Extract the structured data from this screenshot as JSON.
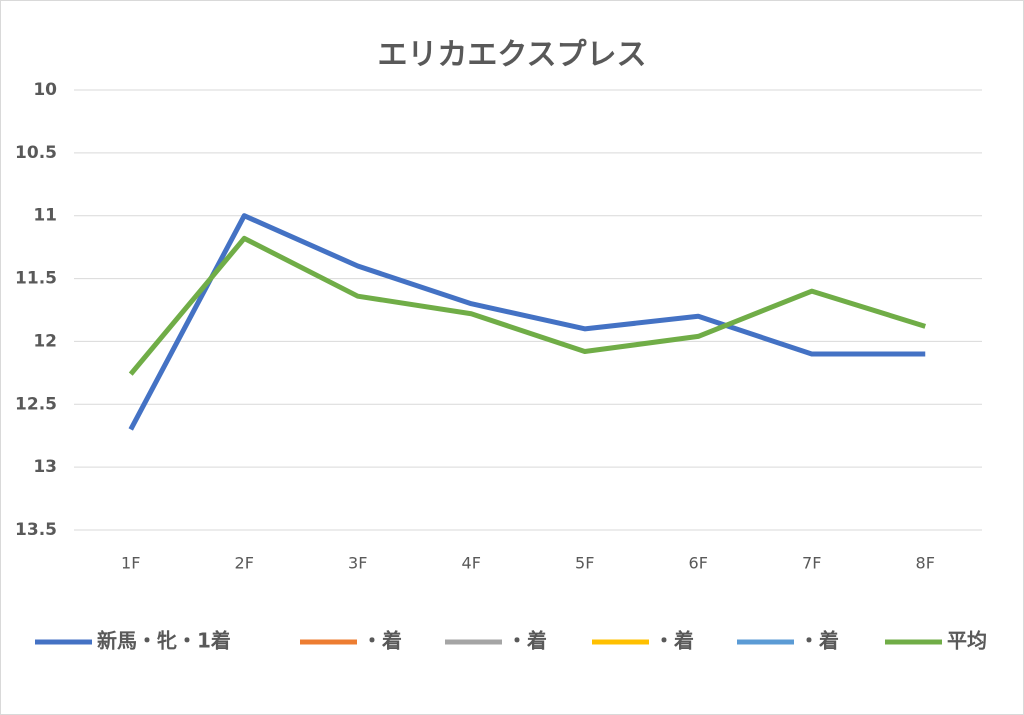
{
  "chart_data": {
    "type": "line",
    "title": "エリカエクスプレス",
    "categories": [
      "1F",
      "2F",
      "3F",
      "4F",
      "5F",
      "6F",
      "7F",
      "8F"
    ],
    "series": [
      {
        "name": "新馬・牝・1着",
        "color": "#4472c4",
        "values": [
          12.7,
          11.0,
          11.4,
          11.7,
          11.9,
          11.8,
          12.1,
          12.1
        ]
      },
      {
        "name": "・着",
        "color": "#ed7d31",
        "values": [
          null,
          null,
          null,
          null,
          null,
          null,
          null,
          null
        ]
      },
      {
        "name": "・着",
        "color": "#a5a5a5",
        "values": [
          null,
          null,
          null,
          null,
          null,
          null,
          null,
          null
        ]
      },
      {
        "name": "・着",
        "color": "#ffc000",
        "values": [
          null,
          null,
          null,
          null,
          null,
          null,
          null,
          null
        ]
      },
      {
        "name": "・着",
        "color": "#5b9bd5",
        "values": [
          null,
          null,
          null,
          null,
          null,
          null,
          null,
          null
        ]
      },
      {
        "name": "平均",
        "color": "#70ad47",
        "values": [
          12.26,
          11.18,
          11.64,
          11.78,
          12.08,
          11.96,
          11.6,
          11.88
        ]
      }
    ],
    "ylim": [
      10,
      13.5
    ],
    "y_inverted": true,
    "yticks": [
      10,
      10.5,
      11,
      11.5,
      12,
      12.5,
      13,
      13.5
    ],
    "grid": true,
    "legend": "bottom"
  }
}
